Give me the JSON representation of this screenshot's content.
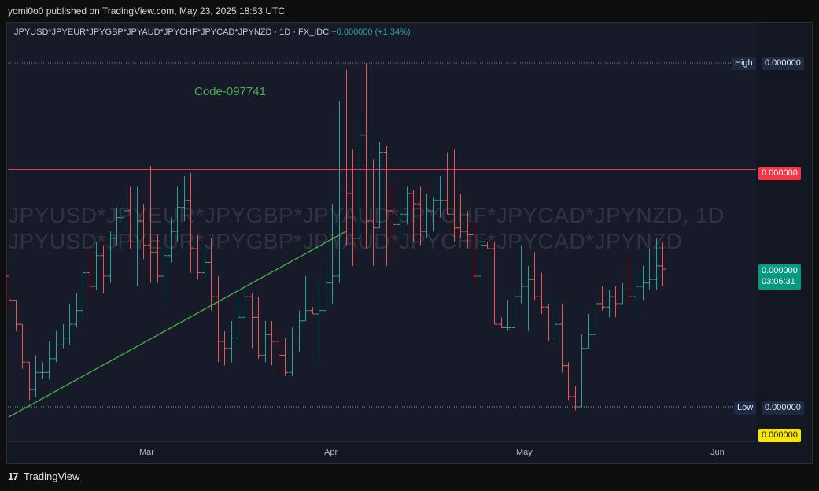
{
  "header": {
    "publish_text": "yomi0o0 published on TradingView.com, May 23, 2025 18:53 UTC"
  },
  "legend": {
    "symbol": "JPYUSD*JPYEUR*JPYGBP*JPYAUD*JPYCHF*JPYCAD*JPYNZD · 1D · FX_IDC",
    "change": "+0.000000 (+1.34%)"
  },
  "watermark": {
    "line1": "JPYUSD*JPYEUR*JPYGBP*JPYAUD*JPYCHF*JPYCAD*JPYNZD, 1D",
    "line2": "JPYUSD*JPYEUR*JPYGBP*JPYAUD*JPYCHF*JPYCAD*JPYNZD"
  },
  "annotation": "Code-097741",
  "price_tags": {
    "high_label": "High",
    "high_value": "0.000000",
    "resistance_value": "0.000000",
    "last_value": "0.000000",
    "countdown": "03:06:31",
    "low_label": "Low",
    "low_value": "0.000000",
    "yellow_value": "0.000000"
  },
  "footer": {
    "brand": "TradingView",
    "logo": "tradingview-logo"
  },
  "colors": {
    "up": "#26a69a",
    "down": "#ef5350",
    "trendline": "#4caf50",
    "resistance": "#f23645",
    "background": "#171b29"
  },
  "chart_data": {
    "type": "ohlc",
    "x_ticks": [
      "Mar",
      "Apr",
      "May",
      "Jun"
    ],
    "x_tick_days": [
      20,
      48,
      76,
      104
    ],
    "y_range": [
      0.0,
      1.0
    ],
    "bars": [
      {
        "d": 0,
        "o": 0.38,
        "h": 0.38,
        "l": 0.27,
        "c": 0.31
      },
      {
        "d": 1,
        "o": 0.31,
        "h": 0.31,
        "l": 0.22,
        "c": 0.24
      },
      {
        "d": 2,
        "o": 0.24,
        "h": 0.24,
        "l": 0.11,
        "c": 0.13
      },
      {
        "d": 3,
        "o": 0.13,
        "h": 0.13,
        "l": 0.02,
        "c": 0.05
      },
      {
        "d": 4,
        "o": 0.05,
        "h": 0.15,
        "l": 0.03,
        "c": 0.1
      },
      {
        "d": 5,
        "o": 0.1,
        "h": 0.13,
        "l": 0.08,
        "c": 0.1
      },
      {
        "d": 6,
        "o": 0.1,
        "h": 0.19,
        "l": 0.08,
        "c": 0.14
      },
      {
        "d": 7,
        "o": 0.14,
        "h": 0.22,
        "l": 0.13,
        "c": 0.18
      },
      {
        "d": 8,
        "o": 0.18,
        "h": 0.24,
        "l": 0.17,
        "c": 0.2
      },
      {
        "d": 9,
        "o": 0.2,
        "h": 0.3,
        "l": 0.18,
        "c": 0.24
      },
      {
        "d": 10,
        "o": 0.24,
        "h": 0.33,
        "l": 0.23,
        "c": 0.28
      },
      {
        "d": 11,
        "o": 0.28,
        "h": 0.41,
        "l": 0.27,
        "c": 0.39
      },
      {
        "d": 12,
        "o": 0.39,
        "h": 0.46,
        "l": 0.32,
        "c": 0.35
      },
      {
        "d": 13,
        "o": 0.35,
        "h": 0.48,
        "l": 0.34,
        "c": 0.44
      },
      {
        "d": 14,
        "o": 0.44,
        "h": 0.47,
        "l": 0.33,
        "c": 0.38
      },
      {
        "d": 15,
        "o": 0.38,
        "h": 0.51,
        "l": 0.36,
        "c": 0.49
      },
      {
        "d": 16,
        "o": 0.49,
        "h": 0.58,
        "l": 0.47,
        "c": 0.55
      },
      {
        "d": 17,
        "o": 0.55,
        "h": 0.6,
        "l": 0.51,
        "c": 0.57
      },
      {
        "d": 18,
        "o": 0.57,
        "h": 0.64,
        "l": 0.46,
        "c": 0.48
      },
      {
        "d": 19,
        "o": 0.48,
        "h": 0.64,
        "l": 0.35,
        "c": 0.54
      },
      {
        "d": 20,
        "o": 0.54,
        "h": 0.59,
        "l": 0.43,
        "c": 0.47
      },
      {
        "d": 21,
        "o": 0.47,
        "h": 0.7,
        "l": 0.36,
        "c": 0.45
      },
      {
        "d": 22,
        "o": 0.45,
        "h": 0.5,
        "l": 0.36,
        "c": 0.38
      },
      {
        "d": 23,
        "o": 0.38,
        "h": 0.47,
        "l": 0.3,
        "c": 0.44
      },
      {
        "d": 24,
        "o": 0.44,
        "h": 0.55,
        "l": 0.42,
        "c": 0.51
      },
      {
        "d": 25,
        "o": 0.51,
        "h": 0.64,
        "l": 0.48,
        "c": 0.58
      },
      {
        "d": 26,
        "o": 0.58,
        "h": 0.67,
        "l": 0.54,
        "c": 0.6
      },
      {
        "d": 27,
        "o": 0.6,
        "h": 0.68,
        "l": 0.39,
        "c": 0.46
      },
      {
        "d": 28,
        "o": 0.46,
        "h": 0.5,
        "l": 0.37,
        "c": 0.39
      },
      {
        "d": 29,
        "o": 0.39,
        "h": 0.47,
        "l": 0.36,
        "c": 0.42
      },
      {
        "d": 30,
        "o": 0.42,
        "h": 0.49,
        "l": 0.28,
        "c": 0.32
      },
      {
        "d": 31,
        "o": 0.32,
        "h": 0.38,
        "l": 0.13,
        "c": 0.19
      },
      {
        "d": 32,
        "o": 0.19,
        "h": 0.22,
        "l": 0.12,
        "c": 0.17
      },
      {
        "d": 33,
        "o": 0.17,
        "h": 0.25,
        "l": 0.13,
        "c": 0.2
      },
      {
        "d": 34,
        "o": 0.2,
        "h": 0.32,
        "l": 0.19,
        "c": 0.26
      },
      {
        "d": 35,
        "o": 0.26,
        "h": 0.36,
        "l": 0.25,
        "c": 0.32
      },
      {
        "d": 36,
        "o": 0.32,
        "h": 0.33,
        "l": 0.17,
        "c": 0.26
      },
      {
        "d": 37,
        "o": 0.26,
        "h": 0.32,
        "l": 0.14,
        "c": 0.15
      },
      {
        "d": 38,
        "o": 0.15,
        "h": 0.25,
        "l": 0.13,
        "c": 0.21
      },
      {
        "d": 39,
        "o": 0.21,
        "h": 0.25,
        "l": 0.12,
        "c": 0.19
      },
      {
        "d": 40,
        "o": 0.19,
        "h": 0.23,
        "l": 0.09,
        "c": 0.15
      },
      {
        "d": 41,
        "o": 0.15,
        "h": 0.2,
        "l": 0.09,
        "c": 0.1
      },
      {
        "d": 42,
        "o": 0.1,
        "h": 0.23,
        "l": 0.09,
        "c": 0.2
      },
      {
        "d": 43,
        "o": 0.2,
        "h": 0.28,
        "l": 0.16,
        "c": 0.25
      },
      {
        "d": 44,
        "o": 0.25,
        "h": 0.38,
        "l": 0.25,
        "c": 0.28
      },
      {
        "d": 45,
        "o": 0.28,
        "h": 0.29,
        "l": 0.27,
        "c": 0.27
      },
      {
        "d": 46,
        "o": 0.27,
        "h": 0.36,
        "l": 0.13,
        "c": 0.28
      },
      {
        "d": 47,
        "o": 0.28,
        "h": 0.42,
        "l": 0.27,
        "c": 0.36
      },
      {
        "d": 48,
        "o": 0.36,
        "h": 0.59,
        "l": 0.3,
        "c": 0.38
      },
      {
        "d": 49,
        "o": 0.38,
        "h": 0.89,
        "l": 0.36,
        "c": 0.63
      },
      {
        "d": 50,
        "o": 0.63,
        "h": 0.98,
        "l": 0.47,
        "c": 0.62
      },
      {
        "d": 51,
        "o": 0.62,
        "h": 0.75,
        "l": 0.41,
        "c": 0.49
      },
      {
        "d": 52,
        "o": 0.49,
        "h": 0.84,
        "l": 0.49,
        "c": 0.79
      },
      {
        "d": 53,
        "o": 0.79,
        "h": 1.0,
        "l": 0.46,
        "c": 0.54
      },
      {
        "d": 54,
        "o": 0.54,
        "h": 0.72,
        "l": 0.41,
        "c": 0.52
      },
      {
        "d": 55,
        "o": 0.52,
        "h": 0.77,
        "l": 0.52,
        "c": 0.74
      },
      {
        "d": 56,
        "o": 0.74,
        "h": 0.76,
        "l": 0.41,
        "c": 0.57
      },
      {
        "d": 57,
        "o": 0.57,
        "h": 0.65,
        "l": 0.45,
        "c": 0.53
      },
      {
        "d": 58,
        "o": 0.53,
        "h": 0.6,
        "l": 0.49,
        "c": 0.56
      },
      {
        "d": 59,
        "o": 0.56,
        "h": 0.64,
        "l": 0.53,
        "c": 0.62
      },
      {
        "d": 60,
        "o": 0.62,
        "h": 0.63,
        "l": 0.48,
        "c": 0.59
      },
      {
        "d": 61,
        "o": 0.59,
        "h": 0.64,
        "l": 0.47,
        "c": 0.51
      },
      {
        "d": 62,
        "o": 0.51,
        "h": 0.62,
        "l": 0.49,
        "c": 0.57
      },
      {
        "d": 63,
        "o": 0.57,
        "h": 0.61,
        "l": 0.51,
        "c": 0.6
      },
      {
        "d": 64,
        "o": 0.6,
        "h": 0.67,
        "l": 0.55,
        "c": 0.6
      },
      {
        "d": 65,
        "o": 0.6,
        "h": 0.74,
        "l": 0.56,
        "c": 0.56
      },
      {
        "d": 66,
        "o": 0.56,
        "h": 0.75,
        "l": 0.48,
        "c": 0.52
      },
      {
        "d": 67,
        "o": 0.52,
        "h": 0.62,
        "l": 0.49,
        "c": 0.51
      },
      {
        "d": 68,
        "o": 0.51,
        "h": 0.57,
        "l": 0.46,
        "c": 0.5
      },
      {
        "d": 69,
        "o": 0.5,
        "h": 0.54,
        "l": 0.36,
        "c": 0.38
      },
      {
        "d": 70,
        "o": 0.38,
        "h": 0.51,
        "l": 0.38,
        "c": 0.47
      },
      {
        "d": 71,
        "o": 0.47,
        "h": 0.48,
        "l": 0.46,
        "c": 0.46
      },
      {
        "d": 72,
        "o": 0.46,
        "h": 0.48,
        "l": 0.24,
        "c": 0.24
      },
      {
        "d": 73,
        "o": 0.24,
        "h": 0.26,
        "l": 0.23,
        "c": 0.23
      },
      {
        "d": 74,
        "o": 0.23,
        "h": 0.31,
        "l": 0.22,
        "c": 0.23
      },
      {
        "d": 75,
        "o": 0.23,
        "h": 0.34,
        "l": 0.23,
        "c": 0.32
      },
      {
        "d": 76,
        "o": 0.32,
        "h": 0.47,
        "l": 0.3,
        "c": 0.35
      },
      {
        "d": 77,
        "o": 0.35,
        "h": 0.41,
        "l": 0.22,
        "c": 0.37
      },
      {
        "d": 78,
        "o": 0.37,
        "h": 0.45,
        "l": 0.31,
        "c": 0.32
      },
      {
        "d": 79,
        "o": 0.32,
        "h": 0.39,
        "l": 0.27,
        "c": 0.29
      },
      {
        "d": 80,
        "o": 0.29,
        "h": 0.3,
        "l": 0.19,
        "c": 0.2
      },
      {
        "d": 81,
        "o": 0.2,
        "h": 0.32,
        "l": 0.19,
        "c": 0.24
      },
      {
        "d": 82,
        "o": 0.24,
        "h": 0.3,
        "l": 0.1,
        "c": 0.12
      },
      {
        "d": 83,
        "o": 0.12,
        "h": 0.13,
        "l": 0.02,
        "c": 0.03
      },
      {
        "d": 84,
        "o": 0.03,
        "h": 0.06,
        "l": -0.01,
        "c": 0.0
      },
      {
        "d": 85,
        "o": 0.0,
        "h": 0.21,
        "l": 0.0,
        "c": 0.17
      },
      {
        "d": 86,
        "o": 0.17,
        "h": 0.27,
        "l": 0.17,
        "c": 0.21
      },
      {
        "d": 87,
        "o": 0.21,
        "h": 0.3,
        "l": 0.21,
        "c": 0.3
      },
      {
        "d": 88,
        "o": 0.3,
        "h": 0.35,
        "l": 0.28,
        "c": 0.29
      },
      {
        "d": 89,
        "o": 0.29,
        "h": 0.34,
        "l": 0.26,
        "c": 0.32
      },
      {
        "d": 90,
        "o": 0.32,
        "h": 0.35,
        "l": 0.26,
        "c": 0.3
      },
      {
        "d": 91,
        "o": 0.3,
        "h": 0.36,
        "l": 0.3,
        "c": 0.34
      },
      {
        "d": 92,
        "o": 0.34,
        "h": 0.43,
        "l": 0.31,
        "c": 0.32
      },
      {
        "d": 93,
        "o": 0.32,
        "h": 0.38,
        "l": 0.28,
        "c": 0.35
      },
      {
        "d": 94,
        "o": 0.35,
        "h": 0.41,
        "l": 0.31,
        "c": 0.36
      },
      {
        "d": 95,
        "o": 0.36,
        "h": 0.46,
        "l": 0.34,
        "c": 0.37
      },
      {
        "d": 96,
        "o": 0.37,
        "h": 0.49,
        "l": 0.34,
        "c": 0.41
      },
      {
        "d": 97,
        "o": 0.41,
        "h": 0.48,
        "l": 0.35,
        "c": 0.4
      }
    ],
    "high_level": 1.0,
    "low_level": 0.0,
    "resistance_level": 0.69,
    "trendline": [
      {
        "d": 0,
        "v": -0.03
      },
      {
        "d": 50,
        "v": 0.51
      }
    ]
  }
}
